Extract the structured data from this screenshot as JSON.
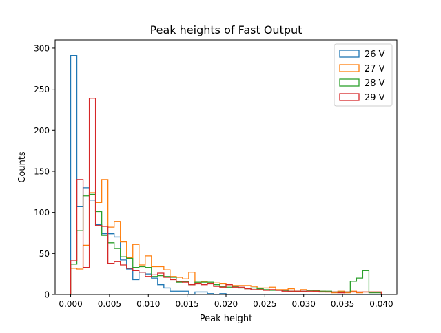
{
  "chart_data": {
    "type": "histogram-step",
    "title": "Peak heights of Fast Output",
    "xlabel": "Peak height",
    "ylabel": "Counts",
    "xlim": [
      -0.002,
      0.042
    ],
    "ylim": [
      0,
      310
    ],
    "x_ticks": [
      0.0,
      0.005,
      0.01,
      0.015,
      0.02,
      0.025,
      0.03,
      0.035,
      0.04
    ],
    "x_tick_labels": [
      "0.000",
      "0.005",
      "0.010",
      "0.015",
      "0.020",
      "0.025",
      "0.030",
      "0.035",
      "0.040"
    ],
    "y_ticks": [
      0,
      50,
      100,
      150,
      200,
      250,
      300
    ],
    "y_tick_labels": [
      "0",
      "50",
      "100",
      "150",
      "200",
      "250",
      "300"
    ],
    "bin_start": 0.0,
    "bin_width": 0.0008,
    "legend_position": "top-right",
    "grid": false,
    "series": [
      {
        "name": "26 V",
        "color": "#1f77b4",
        "values": [
          291,
          107,
          130,
          115,
          85,
          74,
          74,
          70,
          42,
          31,
          18,
          27,
          25,
          20,
          12,
          8,
          4,
          4,
          4,
          0,
          3,
          3,
          1,
          0,
          1,
          0,
          0,
          0,
          0,
          0,
          0,
          0,
          0,
          0,
          0,
          0,
          0,
          0,
          0,
          0,
          0,
          0,
          0,
          0,
          0,
          0,
          0,
          0,
          0,
          0
        ]
      },
      {
        "name": "27 V",
        "color": "#ff7f0e",
        "values": [
          32,
          31,
          60,
          124,
          112,
          140,
          82,
          89,
          64,
          45,
          61,
          36,
          47,
          34,
          34,
          30,
          22,
          21,
          19,
          27,
          14,
          16,
          15,
          14,
          13,
          12,
          11,
          11,
          11,
          10,
          8,
          8,
          9,
          6,
          6,
          7,
          4,
          6,
          5,
          4,
          4,
          3,
          2,
          4,
          2,
          4,
          2,
          3,
          3,
          3
        ]
      },
      {
        "name": "28 V",
        "color": "#2ca02c",
        "values": [
          37,
          78,
          120,
          122,
          101,
          72,
          63,
          56,
          46,
          44,
          33,
          34,
          33,
          22,
          23,
          22,
          21,
          15,
          16,
          12,
          15,
          15,
          15,
          12,
          10,
          9,
          10,
          8,
          7,
          8,
          7,
          6,
          5,
          5,
          5,
          4,
          4,
          4,
          5,
          5,
          4,
          4,
          3,
          3,
          3,
          16,
          20,
          29,
          2,
          2
        ]
      },
      {
        "name": "29 V",
        "color": "#d62728",
        "values": [
          41,
          140,
          33,
          239,
          84,
          83,
          38,
          40,
          36,
          32,
          29,
          27,
          22,
          24,
          26,
          21,
          18,
          16,
          15,
          12,
          13,
          12,
          13,
          10,
          9,
          12,
          9,
          9,
          7,
          6,
          6,
          5,
          6,
          5,
          4,
          4,
          4,
          4,
          4,
          4,
          3,
          3,
          3,
          2,
          3,
          3,
          3,
          3,
          3,
          3
        ]
      }
    ]
  }
}
